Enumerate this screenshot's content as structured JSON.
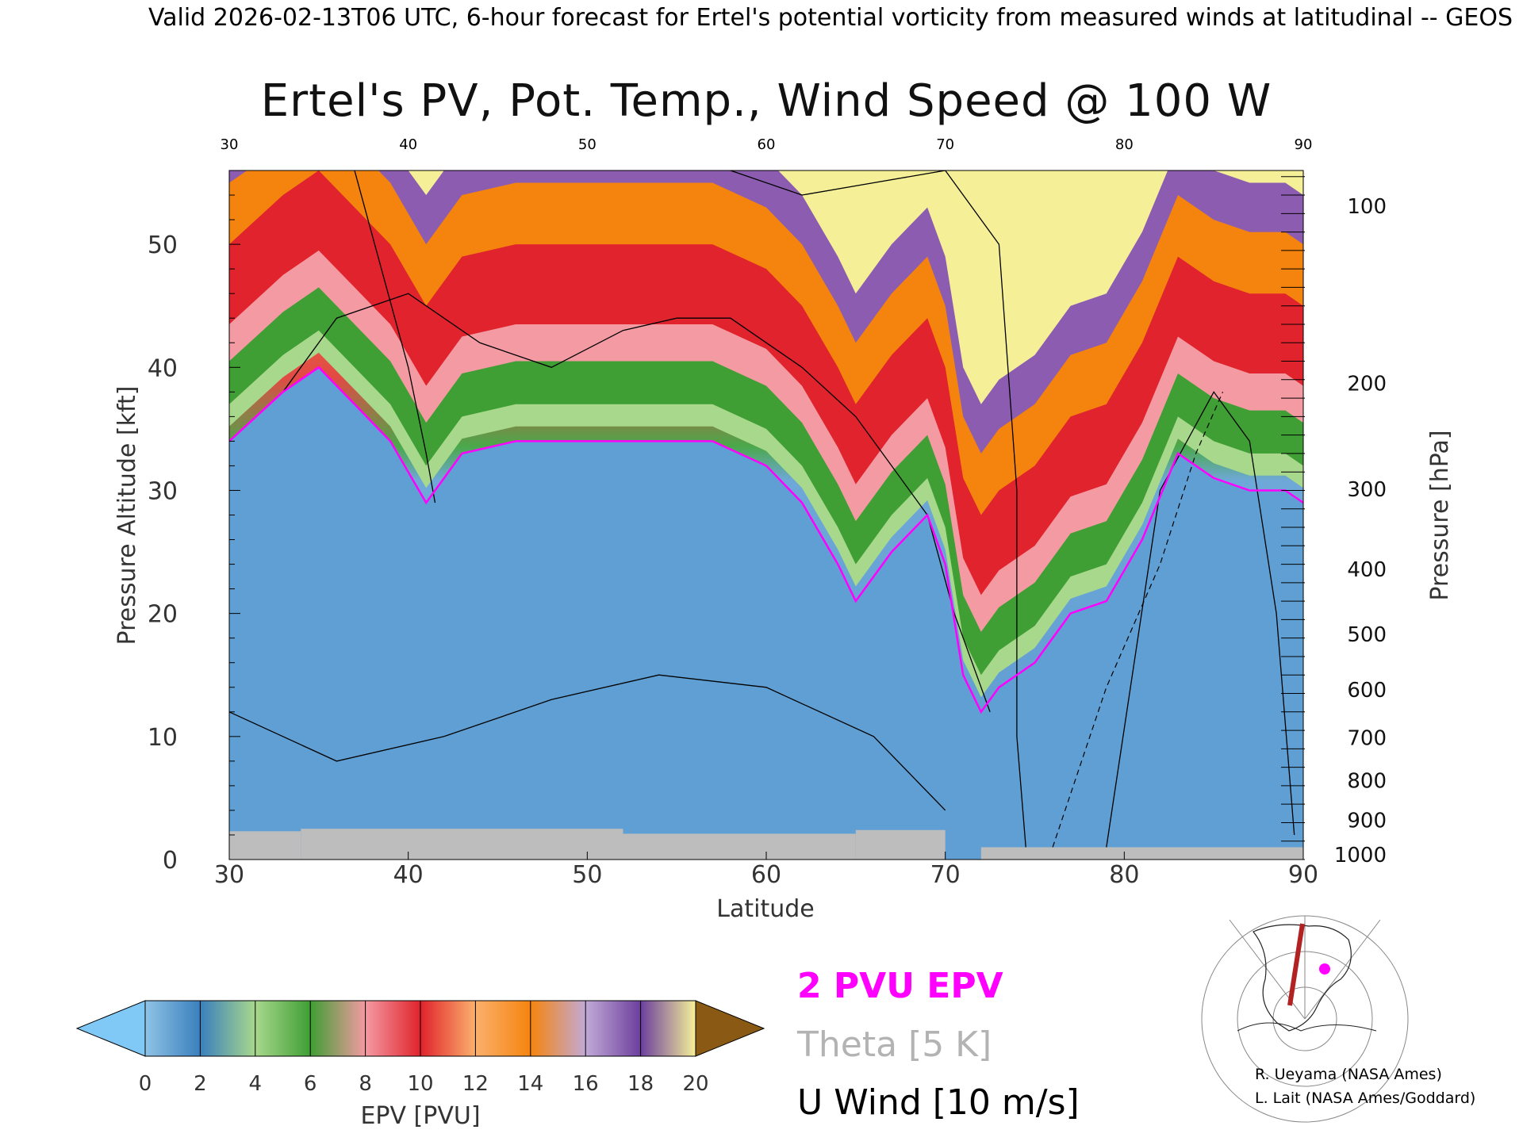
{
  "header": {
    "valid_line": "Valid 2026-02-13T06 UTC, 6-hour forecast for Ertel's potential vorticity from measured winds at latitudinal -- GEOS"
  },
  "chart_data": {
    "type": "heatmap",
    "title": "Ertel's PV, Pot. Temp., Wind Speed @ 100 W",
    "xlabel": "Latitude",
    "ylabel": "Pressure Altitude [kft]",
    "y2label": "Pressure [hPa]",
    "xlim": [
      30,
      90
    ],
    "ylim": [
      0,
      56
    ],
    "x_ticks": [
      30,
      40,
      50,
      60,
      70,
      80,
      90
    ],
    "y_ticks": [
      0,
      10,
      20,
      30,
      40,
      50
    ],
    "pressure_ticks": [
      {
        "label": "100",
        "kft": 53.1
      },
      {
        "label": "200",
        "kft": 38.7
      },
      {
        "label": "300",
        "kft": 30.1
      },
      {
        "label": "400",
        "kft": 23.6
      },
      {
        "label": "500",
        "kft": 18.3
      },
      {
        "label": "600",
        "kft": 13.8
      },
      {
        "label": "700",
        "kft": 9.9
      },
      {
        "label": "800",
        "kft": 6.4
      },
      {
        "label": "900",
        "kft": 3.2
      },
      {
        "label": "1000",
        "kft": 0.4
      }
    ],
    "colorbar": {
      "label": "EPV [PVU]",
      "ticks": [
        0,
        2,
        4,
        6,
        8,
        10,
        12,
        14,
        16,
        18,
        20
      ],
      "colors": [
        "#8fc3e6",
        "#3a7fbd",
        "#a8d88c",
        "#3f9e34",
        "#f49aa2",
        "#e0232c",
        "#fbb06d",
        "#f5840e",
        "#c2aad6",
        "#6c3f9e",
        "#f5f098"
      ],
      "under_color": "#80c8f5",
      "over_color": "#8a5a14"
    },
    "pv2_boundary": {
      "lat": [
        30,
        33,
        35,
        37,
        39,
        41,
        43,
        46,
        50,
        53,
        57,
        60,
        62,
        64,
        65,
        67,
        69,
        70,
        71,
        72,
        73,
        75,
        77,
        79,
        81,
        83,
        85,
        87,
        89,
        90
      ],
      "kft": [
        34,
        38,
        40,
        37,
        34,
        29,
        33,
        34,
        34,
        34,
        34,
        32,
        29,
        24,
        21,
        25,
        28,
        24,
        15,
        12,
        14,
        16,
        20,
        21,
        26,
        33,
        31,
        30,
        30,
        29
      ]
    },
    "legend": {
      "items": [
        {
          "label": "2 PVU EPV",
          "color": "#ff00ff"
        },
        {
          "label": "Theta [5 K]",
          "color": "#b3b3b3"
        },
        {
          "label": "U Wind [10 m/s]",
          "color": "#000000"
        }
      ]
    },
    "credits": [
      "R. Ueyama (NASA Ames)",
      "L. Lait (NASA Ames/Goddard)"
    ]
  }
}
